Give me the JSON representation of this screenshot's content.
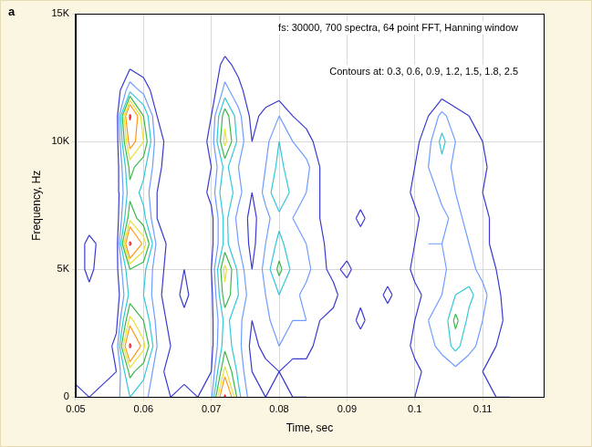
{
  "chart_data": {
    "type": "contour",
    "panel": "a",
    "title": "fs: 30000, 700 spectra, 64 point FFT, Hanning window",
    "annotation": "Contours at: 0.3, 0.6, 0.9, 1.2, 1.5, 1.8, 2.5",
    "x_label": "Time, sec",
    "y_label": "Frequency, Hz",
    "xlim": [
      0.05,
      0.119
    ],
    "xticks": [
      0.05,
      0.06,
      0.07,
      0.08,
      0.09,
      0.1,
      0.11
    ],
    "ylim": [
      0,
      15000
    ],
    "yticks": [
      0,
      {
        "value": 5000,
        "label": "5K"
      },
      {
        "value": 10000,
        "label": "10K"
      },
      {
        "value": 15000,
        "label": "15K"
      }
    ],
    "grid": true,
    "levels": [
      0.3,
      0.6,
      0.9,
      1.2,
      1.5,
      1.8,
      2.5
    ],
    "colors": [
      "#3a3ad0",
      "#6f9cff",
      "#33c8d8",
      "#3cb84a",
      "#e6e23a",
      "#ff9a1a",
      "#ee1c1c"
    ],
    "x": [
      0.05,
      0.052,
      0.054,
      0.056,
      0.058,
      0.06,
      0.062,
      0.064,
      0.066,
      0.068,
      0.07,
      0.072,
      0.074,
      0.076,
      0.078,
      0.08,
      0.082,
      0.084,
      0.086,
      0.088,
      0.09,
      0.092,
      0.094,
      0.096,
      0.098,
      0.1,
      0.102,
      0.104,
      0.106,
      0.108,
      0.11,
      0.112,
      0.114,
      0.116,
      0.118
    ],
    "y": [
      0,
      1000,
      2000,
      3000,
      4000,
      5000,
      6000,
      7000,
      8000,
      9000,
      10000,
      11000,
      12000,
      13000,
      14000,
      15000
    ],
    "z": [
      [
        0.4,
        0.2,
        0.1,
        0.1,
        0.1,
        0.1,
        0.1,
        0.1,
        0.1,
        0.1,
        0.1,
        0.1,
        0.1,
        0.1,
        0.1,
        0.1
      ],
      [
        0.3,
        0.2,
        0.1,
        0.2,
        0.2,
        0.4,
        0.4,
        0.1,
        0.1,
        0.1,
        0.1,
        0.1,
        0.1,
        0.1,
        0.1,
        0.1
      ],
      [
        0.4,
        0.2,
        0.1,
        0.1,
        0.1,
        0.1,
        0.2,
        0.1,
        0.1,
        0.1,
        0.1,
        0.1,
        0.1,
        0.1,
        0.1,
        0.1
      ],
      [
        0.5,
        0.3,
        0.4,
        0.2,
        0.1,
        0.2,
        0.1,
        0.1,
        0.1,
        0.1,
        0.1,
        0.1,
        0.1,
        0.1,
        0.1,
        0.1
      ],
      [
        0.9,
        1.3,
        2.6,
        1.6,
        1.0,
        1.2,
        2.6,
        1.4,
        1.1,
        1.3,
        2.0,
        2.6,
        0.8,
        0.2,
        0.1,
        0.1
      ],
      [
        0.7,
        1.0,
        1.6,
        1.2,
        0.9,
        1.0,
        1.7,
        1.0,
        0.8,
        1.0,
        1.5,
        1.2,
        0.5,
        0.1,
        0.1,
        0.1
      ],
      [
        0.4,
        0.4,
        0.6,
        0.5,
        0.4,
        0.4,
        0.5,
        0.3,
        0.3,
        0.4,
        0.4,
        0.3,
        0.1,
        0.1,
        0.1,
        0.1
      ],
      [
        0.3,
        0.2,
        0.3,
        0.2,
        0.1,
        0.2,
        0.2,
        0.1,
        0.1,
        0.1,
        0.2,
        0.1,
        0.1,
        0.1,
        0.1,
        0.1
      ],
      [
        0.4,
        0.2,
        0.1,
        0.2,
        0.4,
        0.3,
        0.1,
        0.1,
        0.1,
        0.1,
        0.1,
        0.1,
        0.1,
        0.1,
        0.1,
        0.1
      ],
      [
        0.3,
        0.1,
        0.1,
        0.1,
        0.1,
        0.1,
        0.1,
        0.1,
        0.1,
        0.1,
        0.1,
        0.1,
        0.1,
        0.1,
        0.1,
        0.1
      ],
      [
        0.5,
        0.3,
        0.2,
        0.2,
        0.2,
        0.3,
        0.2,
        0.2,
        0.4,
        0.3,
        0.4,
        0.3,
        0.1,
        0.1,
        0.1,
        0.1
      ],
      [
        2.6,
        1.6,
        1.1,
        1.0,
        1.4,
        1.6,
        1.0,
        1.0,
        1.2,
        1.0,
        1.6,
        1.4,
        0.7,
        0.4,
        0.1,
        0.1
      ],
      [
        1.0,
        0.8,
        0.7,
        0.7,
        0.9,
        0.8,
        0.6,
        0.5,
        0.7,
        0.6,
        0.8,
        0.7,
        0.4,
        0.2,
        0.1,
        0.1
      ],
      [
        0.4,
        0.3,
        0.2,
        0.3,
        0.4,
        0.3,
        0.2,
        0.2,
        0.3,
        0.4,
        0.3,
        0.2,
        0.1,
        0.1,
        0.1,
        0.1
      ],
      [
        0.3,
        0.2,
        0.4,
        0.5,
        0.6,
        0.7,
        0.6,
        0.5,
        0.7,
        0.6,
        0.5,
        0.4,
        0.1,
        0.1,
        0.1,
        0.1
      ],
      [
        0.4,
        0.3,
        0.6,
        0.8,
        0.9,
        1.3,
        1.0,
        0.8,
        1.2,
        1.0,
        0.9,
        0.6,
        0.1,
        0.1,
        0.1,
        0.1
      ],
      [
        0.3,
        0.2,
        0.4,
        0.6,
        0.7,
        0.8,
        0.7,
        0.6,
        0.8,
        0.7,
        0.6,
        0.3,
        0.1,
        0.1,
        0.1,
        0.1
      ],
      [
        0.3,
        0.2,
        0.4,
        0.6,
        0.5,
        0.7,
        0.6,
        0.5,
        0.6,
        0.7,
        0.4,
        0.2,
        0.1,
        0.1,
        0.1,
        0.1
      ],
      [
        0.2,
        0.1,
        0.2,
        0.3,
        0.4,
        0.4,
        0.4,
        0.3,
        0.3,
        0.3,
        0.2,
        0.1,
        0.1,
        0.1,
        0.1,
        0.1
      ],
      [
        0.3,
        0.1,
        0.1,
        0.2,
        0.4,
        0.2,
        0.1,
        0.1,
        0.1,
        0.1,
        0.1,
        0.1,
        0.1,
        0.1,
        0.1,
        0.1
      ],
      [
        0.2,
        0.1,
        0.1,
        0.1,
        0.1,
        0.4,
        0.1,
        0.1,
        0.1,
        0.1,
        0.1,
        0.1,
        0.1,
        0.1,
        0.1,
        0.1
      ],
      [
        0.3,
        0.1,
        0.1,
        0.4,
        0.2,
        0.1,
        0.1,
        0.4,
        0.1,
        0.1,
        0.1,
        0.1,
        0.1,
        0.1,
        0.1,
        0.1
      ],
      [
        0.2,
        0.1,
        0.1,
        0.1,
        0.1,
        0.1,
        0.1,
        0.1,
        0.1,
        0.1,
        0.1,
        0.1,
        0.1,
        0.1,
        0.1,
        0.1
      ],
      [
        0.3,
        0.1,
        0.1,
        0.1,
        0.4,
        0.1,
        0.1,
        0.1,
        0.1,
        0.1,
        0.1,
        0.1,
        0.1,
        0.1,
        0.1,
        0.1
      ],
      [
        0.2,
        0.1,
        0.1,
        0.1,
        0.1,
        0.1,
        0.1,
        0.1,
        0.1,
        0.1,
        0.1,
        0.1,
        0.1,
        0.1,
        0.1,
        0.1
      ],
      [
        0.3,
        0.2,
        0.4,
        0.3,
        0.2,
        0.4,
        0.3,
        0.2,
        0.4,
        0.3,
        0.2,
        0.1,
        0.1,
        0.1,
        0.1,
        0.1
      ],
      [
        0.4,
        0.4,
        0.5,
        0.6,
        0.4,
        0.5,
        0.6,
        0.5,
        0.4,
        0.6,
        0.5,
        0.3,
        0.1,
        0.1,
        0.1,
        0.1
      ],
      [
        0.5,
        0.4,
        0.7,
        0.6,
        0.6,
        0.5,
        0.6,
        0.5,
        0.7,
        0.8,
        1.0,
        0.7,
        0.1,
        0.1,
        0.1,
        0.1
      ],
      [
        0.6,
        0.5,
        1.0,
        1.3,
        0.9,
        0.8,
        0.6,
        0.7,
        0.6,
        0.5,
        0.6,
        0.4,
        0.1,
        0.1,
        0.1,
        0.1
      ],
      [
        0.5,
        0.4,
        0.7,
        0.8,
        1.0,
        0.7,
        0.6,
        0.5,
        0.4,
        0.6,
        0.4,
        0.3,
        0.1,
        0.1,
        0.1,
        0.1
      ],
      [
        0.4,
        0.3,
        0.5,
        0.6,
        0.7,
        0.5,
        0.4,
        0.4,
        0.3,
        0.4,
        0.3,
        0.2,
        0.1,
        0.1,
        0.1,
        0.1
      ],
      [
        0.3,
        0.2,
        0.3,
        0.4,
        0.4,
        0.3,
        0.2,
        0.2,
        0.1,
        0.1,
        0.1,
        0.1,
        0.1,
        0.1,
        0.1,
        0.1
      ],
      [
        0.3,
        0.1,
        0.1,
        0.2,
        0.1,
        0.1,
        0.1,
        0.1,
        0.1,
        0.1,
        0.1,
        0.1,
        0.1,
        0.1,
        0.1,
        0.1
      ],
      [
        0.2,
        0.1,
        0.1,
        0.1,
        0.1,
        0.1,
        0.1,
        0.1,
        0.1,
        0.1,
        0.1,
        0.1,
        0.1,
        0.1,
        0.1,
        0.1
      ],
      [
        0.2,
        0.1,
        0.1,
        0.1,
        0.1,
        0.1,
        0.1,
        0.1,
        0.1,
        0.1,
        0.1,
        0.1,
        0.1,
        0.1,
        0.1,
        0.1
      ]
    ]
  }
}
